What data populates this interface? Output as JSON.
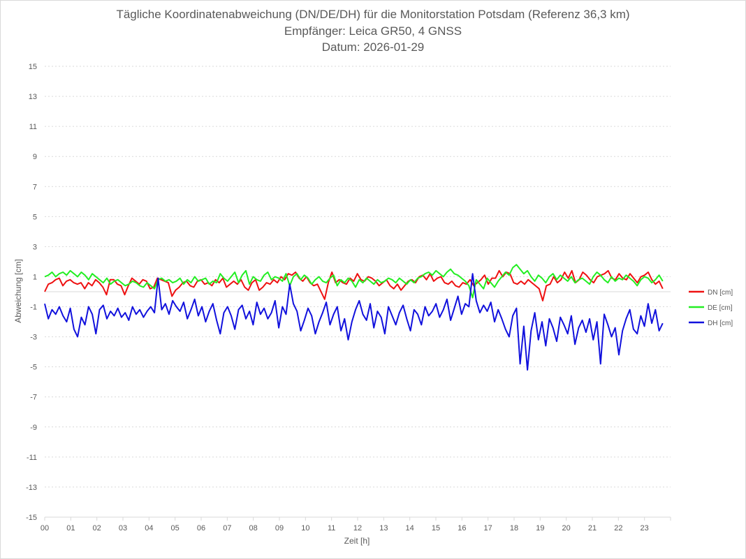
{
  "chart_data": {
    "type": "line",
    "title": [
      "Tägliche Koordinatenabweichung (DN/DE/DH) für die Monitorstation Potsdam (Referenz 36,3 km)",
      "Empfänger: Leica GR50, 4 GNSS",
      "Datum: 2026-01-29"
    ],
    "xlabel": "Zeit [h]",
    "ylabel": "Abweichung [cm]",
    "xlim": [
      0,
      24
    ],
    "ylim": [
      -15,
      15
    ],
    "x_ticks": [
      "00",
      "01",
      "02",
      "03",
      "04",
      "05",
      "06",
      "07",
      "08",
      "09",
      "10",
      "11",
      "12",
      "13",
      "14",
      "15",
      "16",
      "17",
      "18",
      "19",
      "20",
      "21",
      "22",
      "23"
    ],
    "y_ticks": [
      "15",
      "13",
      "11",
      "9",
      "7",
      "5",
      "3",
      "1",
      "-1",
      "-3",
      "-5",
      "-7",
      "-9",
      "-11",
      "-13",
      "-15"
    ],
    "grid": "horizontal dotted",
    "legend_position": "right",
    "x_step_hours": 0.5,
    "series": [
      {
        "name": "DN [cm]",
        "color": "#ee1111",
        "values": [
          0.0,
          0.5,
          0.6,
          0.8,
          0.9,
          0.4,
          0.7,
          0.8,
          0.6,
          0.5,
          0.6,
          0.2,
          0.6,
          0.4,
          0.8,
          0.6,
          0.3,
          -0.2,
          0.8,
          0.8,
          0.5,
          0.4,
          -0.2,
          0.4,
          0.9,
          0.7,
          0.5,
          0.8,
          0.7,
          0.2,
          0.3,
          0.9,
          0.8,
          0.7,
          0.6,
          -0.3,
          0.1,
          0.3,
          0.6,
          0.7,
          0.4,
          0.3,
          0.7,
          0.8,
          0.5,
          0.6,
          0.4,
          0.8,
          0.6,
          0.9,
          0.3,
          0.5,
          0.7,
          0.5,
          0.8,
          0.3,
          0.1,
          0.6,
          0.8,
          0.1,
          0.3,
          0.6,
          0.5,
          0.8,
          0.6,
          1.0,
          0.8,
          1.2,
          1.1,
          1.3,
          0.9,
          0.7,
          1.0,
          0.6,
          0.4,
          0.5,
          0.0,
          -0.5,
          0.6,
          1.3,
          0.6,
          0.8,
          0.6,
          0.5,
          0.9,
          0.7,
          1.2,
          0.8,
          0.7,
          1.0,
          0.9,
          0.7,
          0.4,
          0.6,
          0.8,
          0.4,
          0.2,
          0.5,
          0.1,
          0.4,
          0.7,
          0.8,
          0.6,
          1.0,
          1.1,
          0.8,
          1.2,
          0.7,
          0.9,
          1.0,
          0.6,
          0.5,
          0.7,
          0.4,
          0.3,
          0.6,
          0.5,
          0.8,
          0.4,
          0.6,
          0.8,
          1.1,
          0.5,
          0.9,
          0.9,
          1.4,
          1.0,
          1.3,
          1.2,
          0.6,
          0.5,
          0.7,
          0.5,
          0.8,
          0.6,
          0.4,
          0.2,
          -0.6,
          0.4,
          0.5,
          1.0,
          0.6,
          0.8,
          1.3,
          0.9,
          1.4,
          0.6,
          0.8,
          1.3,
          1.1,
          0.8,
          0.6,
          1.0,
          1.1,
          1.2,
          1.4,
          0.9,
          0.8,
          1.2,
          0.9,
          0.8,
          1.2,
          0.9,
          0.6,
          1.0,
          1.1,
          1.3,
          0.8,
          0.5,
          0.7,
          0.2
        ]
      },
      {
        "name": "DE [cm]",
        "color": "#22ee22",
        "values": [
          1.0,
          1.1,
          1.3,
          1.0,
          1.2,
          1.3,
          1.1,
          1.4,
          1.2,
          1.0,
          1.3,
          1.1,
          0.8,
          1.2,
          1.0,
          0.8,
          0.6,
          0.9,
          0.5,
          0.7,
          0.8,
          0.6,
          0.4,
          0.5,
          0.7,
          0.6,
          0.4,
          0.3,
          0.6,
          0.4,
          0.2,
          0.8,
          0.9,
          0.7,
          0.8,
          0.6,
          0.7,
          0.9,
          0.5,
          0.8,
          0.6,
          1.0,
          0.7,
          0.8,
          0.9,
          0.5,
          0.7,
          0.6,
          1.2,
          0.9,
          0.7,
          1.0,
          1.3,
          0.6,
          1.1,
          1.4,
          0.5,
          1.0,
          0.8,
          0.7,
          1.1,
          1.3,
          0.8,
          1.0,
          0.9,
          0.7,
          1.2,
          0.4,
          1.0,
          1.2,
          0.8,
          1.1,
          0.9,
          0.5,
          0.8,
          1.0,
          0.7,
          0.6,
          0.9,
          1.1,
          0.4,
          0.8,
          0.6,
          0.9,
          0.7,
          0.3,
          0.8,
          0.6,
          0.9,
          0.7,
          0.5,
          0.8,
          0.6,
          0.7,
          0.9,
          0.8,
          0.6,
          0.9,
          0.7,
          0.5,
          0.8,
          0.6,
          0.9,
          1.0,
          1.2,
          1.3,
          1.1,
          1.4,
          1.2,
          1.0,
          1.3,
          1.5,
          1.2,
          1.1,
          0.9,
          0.7,
          0.4,
          -0.4,
          0.8,
          0.5,
          0.2,
          0.9,
          0.6,
          0.3,
          0.7,
          1.0,
          1.3,
          1.1,
          1.6,
          1.8,
          1.5,
          1.2,
          1.4,
          1.0,
          0.7,
          1.1,
          0.9,
          0.6,
          1.0,
          1.2,
          0.8,
          1.1,
          0.9,
          0.7,
          1.0,
          0.6,
          0.8,
          0.9,
          0.7,
          0.5,
          1.0,
          1.3,
          1.1,
          0.8,
          0.6,
          1.0,
          0.7,
          0.9,
          0.8,
          1.1,
          0.9,
          0.7,
          0.4,
          0.8,
          1.0,
          0.9,
          0.6,
          0.8,
          1.1,
          0.7
        ]
      },
      {
        "name": "DH [cm]",
        "color": "#1111dd",
        "values": [
          -0.8,
          -1.8,
          -1.2,
          -1.5,
          -1.0,
          -1.6,
          -2.0,
          -1.1,
          -2.5,
          -3.0,
          -1.7,
          -2.2,
          -1.0,
          -1.5,
          -2.8,
          -1.2,
          -0.9,
          -1.8,
          -1.3,
          -1.6,
          -1.1,
          -1.7,
          -1.4,
          -1.9,
          -1.0,
          -1.5,
          -1.2,
          -1.7,
          -1.3,
          -1.0,
          -1.4,
          0.9,
          -1.2,
          -0.8,
          -1.5,
          -0.6,
          -1.0,
          -1.3,
          -0.7,
          -1.8,
          -1.2,
          -0.5,
          -1.6,
          -1.0,
          -2.0,
          -1.3,
          -0.8,
          -1.9,
          -2.8,
          -1.4,
          -1.0,
          -1.6,
          -2.5,
          -1.2,
          -0.9,
          -1.8,
          -1.3,
          -2.2,
          -0.7,
          -1.5,
          -1.1,
          -1.8,
          -1.4,
          -0.6,
          -2.4,
          -1.0,
          -1.5,
          0.5,
          -0.8,
          -1.3,
          -2.6,
          -1.9,
          -1.1,
          -1.6,
          -2.8,
          -2.0,
          -1.4,
          -0.7,
          -2.2,
          -1.5,
          -1.0,
          -2.6,
          -1.8,
          -3.2,
          -2.0,
          -1.2,
          -0.6,
          -1.5,
          -1.9,
          -0.8,
          -2.4,
          -1.3,
          -1.7,
          -2.8,
          -1.0,
          -1.6,
          -2.2,
          -1.4,
          -0.9,
          -1.8,
          -2.6,
          -1.2,
          -1.5,
          -2.2,
          -1.0,
          -1.6,
          -1.3,
          -0.8,
          -1.7,
          -1.2,
          -0.5,
          -1.9,
          -1.1,
          -0.3,
          -1.5,
          -0.8,
          -1.0,
          1.2,
          -0.6,
          -1.4,
          -0.9,
          -1.3,
          -0.7,
          -2.0,
          -1.2,
          -1.8,
          -2.5,
          -3.0,
          -1.6,
          -1.1,
          -4.8,
          -2.3,
          -5.2,
          -2.6,
          -1.4,
          -3.2,
          -2.0,
          -3.6,
          -1.8,
          -2.4,
          -3.3,
          -1.7,
          -2.2,
          -2.8,
          -1.6,
          -3.5,
          -2.4,
          -1.9,
          -2.7,
          -1.8,
          -3.2,
          -2.0,
          -4.8,
          -1.5,
          -2.2,
          -3.0,
          -2.4,
          -4.2,
          -2.6,
          -1.8,
          -1.2,
          -2.5,
          -2.8,
          -1.6,
          -2.3,
          -0.8,
          -2.1,
          -1.2,
          -2.6,
          -2.1
        ]
      }
    ]
  }
}
